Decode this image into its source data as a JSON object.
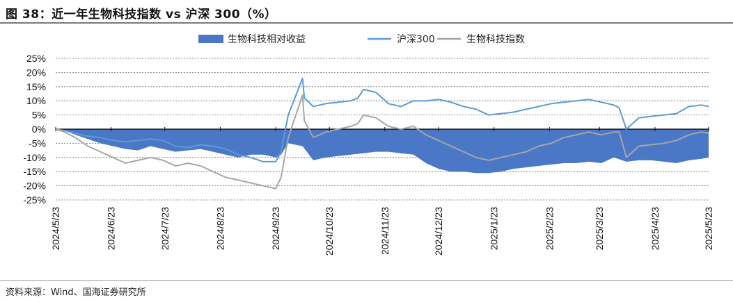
{
  "page": {
    "title": "图 38：近一年生物科技指数 vs 沪深 300（%）",
    "source": "资料来源：Wind、国海证券研究所"
  },
  "chart_data": {
    "type": "line",
    "title": "图 38：近一年生物科技指数 vs 沪深 300（%）",
    "xlabel": "",
    "ylabel": "",
    "ylim": [
      -25,
      25
    ],
    "yticks": [
      "25%",
      "20%",
      "15%",
      "10%",
      "5%",
      "0%",
      "-5%",
      "-10%",
      "-15%",
      "-20%",
      "-25%"
    ],
    "x_labels": [
      "2024/5/23",
      "2024/6/23",
      "2024/7/23",
      "2024/8/23",
      "2024/9/23",
      "2024/10/23",
      "2024/11/23",
      "2024/12/23",
      "2025/1/23",
      "2025/2/23",
      "2025/3/23",
      "2025/4/23",
      "2025/5/23"
    ],
    "x_start": "2024/5/23",
    "x_end": "2025/5/23",
    "grid": "horizontal dashed",
    "legend_position": "top-center",
    "series": [
      {
        "name": "生物科技相对收益",
        "kind": "area",
        "color": "#4a78c6",
        "points": [
          [
            "2024-05-23",
            0
          ],
          [
            "2024-05-28",
            -0.5
          ],
          [
            "2024-06-03",
            -2
          ],
          [
            "2024-06-10",
            -3.5
          ],
          [
            "2024-06-17",
            -5
          ],
          [
            "2024-06-24",
            -6
          ],
          [
            "2024-07-01",
            -7
          ],
          [
            "2024-07-08",
            -7.5
          ],
          [
            "2024-07-15",
            -6
          ],
          [
            "2024-07-22",
            -7
          ],
          [
            "2024-07-29",
            -8
          ],
          [
            "2024-08-05",
            -7.5
          ],
          [
            "2024-08-12",
            -7
          ],
          [
            "2024-08-19",
            -8
          ],
          [
            "2024-08-26",
            -9
          ],
          [
            "2024-09-02",
            -10
          ],
          [
            "2024-09-09",
            -9
          ],
          [
            "2024-09-16",
            -9
          ],
          [
            "2024-09-23",
            -10
          ],
          [
            "2024-09-26",
            -9
          ],
          [
            "2024-09-30",
            -5
          ],
          [
            "2024-10-08",
            -6
          ],
          [
            "2024-10-14",
            -11
          ],
          [
            "2024-10-21",
            -10
          ],
          [
            "2024-10-28",
            -9.5
          ],
          [
            "2024-11-04",
            -9
          ],
          [
            "2024-11-11",
            -8.5
          ],
          [
            "2024-11-18",
            -8
          ],
          [
            "2024-11-25",
            -8
          ],
          [
            "2024-12-02",
            -8.5
          ],
          [
            "2024-12-09",
            -9
          ],
          [
            "2024-12-16",
            -12
          ],
          [
            "2024-12-23",
            -14
          ],
          [
            "2024-12-30",
            -15
          ],
          [
            "2025-01-06",
            -15
          ],
          [
            "2025-01-13",
            -15.5
          ],
          [
            "2025-01-20",
            -15.5
          ],
          [
            "2025-01-27",
            -15
          ],
          [
            "2025-02-03",
            -14
          ],
          [
            "2025-02-10",
            -13.5
          ],
          [
            "2025-02-17",
            -13
          ],
          [
            "2025-02-24",
            -12.5
          ],
          [
            "2025-03-03",
            -12
          ],
          [
            "2025-03-10",
            -12
          ],
          [
            "2025-03-17",
            -11.5
          ],
          [
            "2025-03-24",
            -12
          ],
          [
            "2025-03-31",
            -10
          ],
          [
            "2025-04-07",
            -11.5
          ],
          [
            "2025-04-14",
            -11
          ],
          [
            "2025-04-21",
            -11
          ],
          [
            "2025-04-28",
            -11.5
          ],
          [
            "2025-05-05",
            -12
          ],
          [
            "2025-05-12",
            -11
          ],
          [
            "2025-05-19",
            -10.5
          ],
          [
            "2025-05-23",
            -10
          ]
        ]
      },
      {
        "name": "沪深300",
        "kind": "line",
        "color": "#5b9bd5",
        "points": [
          [
            "2024-05-23",
            0
          ],
          [
            "2024-05-28",
            -0.5
          ],
          [
            "2024-06-03",
            -1.5
          ],
          [
            "2024-06-10",
            -2.5
          ],
          [
            "2024-06-17",
            -3
          ],
          [
            "2024-06-24",
            -4
          ],
          [
            "2024-07-01",
            -4.5
          ],
          [
            "2024-07-08",
            -4
          ],
          [
            "2024-07-15",
            -3.5
          ],
          [
            "2024-07-22",
            -4
          ],
          [
            "2024-07-29",
            -6
          ],
          [
            "2024-08-05",
            -6.5
          ],
          [
            "2024-08-12",
            -5.5
          ],
          [
            "2024-08-19",
            -6
          ],
          [
            "2024-08-26",
            -7
          ],
          [
            "2024-09-02",
            -9
          ],
          [
            "2024-09-09",
            -10
          ],
          [
            "2024-09-16",
            -11.5
          ],
          [
            "2024-09-23",
            -11.5
          ],
          [
            "2024-09-26",
            -8
          ],
          [
            "2024-09-30",
            5
          ],
          [
            "2024-10-08",
            18
          ],
          [
            "2024-10-09",
            11
          ],
          [
            "2024-10-14",
            8
          ],
          [
            "2024-10-21",
            9
          ],
          [
            "2024-10-28",
            9.5
          ],
          [
            "2024-11-04",
            10
          ],
          [
            "2024-11-08",
            11
          ],
          [
            "2024-11-11",
            14
          ],
          [
            "2024-11-18",
            13
          ],
          [
            "2024-11-25",
            9
          ],
          [
            "2024-12-02",
            8
          ],
          [
            "2024-12-09",
            10
          ],
          [
            "2024-12-16",
            10
          ],
          [
            "2024-12-23",
            10.5
          ],
          [
            "2024-12-30",
            9.5
          ],
          [
            "2025-01-06",
            8
          ],
          [
            "2025-01-13",
            7
          ],
          [
            "2025-01-20",
            5
          ],
          [
            "2025-01-27",
            5.5
          ],
          [
            "2025-02-03",
            6
          ],
          [
            "2025-02-10",
            7
          ],
          [
            "2025-02-17",
            8
          ],
          [
            "2025-02-24",
            9
          ],
          [
            "2025-03-03",
            9.5
          ],
          [
            "2025-03-10",
            10
          ],
          [
            "2025-03-17",
            10.5
          ],
          [
            "2025-03-24",
            9.5
          ],
          [
            "2025-03-31",
            8.5
          ],
          [
            "2025-04-03",
            7.5
          ],
          [
            "2025-04-07",
            0
          ],
          [
            "2025-04-14",
            4
          ],
          [
            "2025-04-21",
            4.5
          ],
          [
            "2025-04-28",
            5
          ],
          [
            "2025-05-05",
            5.5
          ],
          [
            "2025-05-12",
            8
          ],
          [
            "2025-05-19",
            8.5
          ],
          [
            "2025-05-23",
            8
          ]
        ]
      },
      {
        "name": "生物科技指数",
        "kind": "line",
        "color": "#a6a6a6",
        "points": [
          [
            "2024-05-23",
            0
          ],
          [
            "2024-05-28",
            -1
          ],
          [
            "2024-06-03",
            -3
          ],
          [
            "2024-06-10",
            -6
          ],
          [
            "2024-06-17",
            -8
          ],
          [
            "2024-06-24",
            -10
          ],
          [
            "2024-07-01",
            -12
          ],
          [
            "2024-07-08",
            -11
          ],
          [
            "2024-07-15",
            -10
          ],
          [
            "2024-07-22",
            -11
          ],
          [
            "2024-07-29",
            -13
          ],
          [
            "2024-08-05",
            -12
          ],
          [
            "2024-08-12",
            -13
          ],
          [
            "2024-08-19",
            -15
          ],
          [
            "2024-08-26",
            -17
          ],
          [
            "2024-09-02",
            -18
          ],
          [
            "2024-09-09",
            -19
          ],
          [
            "2024-09-16",
            -20
          ],
          [
            "2024-09-23",
            -21
          ],
          [
            "2024-09-26",
            -17
          ],
          [
            "2024-09-30",
            -3
          ],
          [
            "2024-10-08",
            12
          ],
          [
            "2024-10-09",
            3
          ],
          [
            "2024-10-14",
            -3
          ],
          [
            "2024-10-21",
            -1
          ],
          [
            "2024-10-28",
            0
          ],
          [
            "2024-11-04",
            1
          ],
          [
            "2024-11-08",
            2
          ],
          [
            "2024-11-11",
            5
          ],
          [
            "2024-11-18",
            4
          ],
          [
            "2024-11-25",
            1
          ],
          [
            "2024-12-02",
            0
          ],
          [
            "2024-12-09",
            1
          ],
          [
            "2024-12-16",
            -2
          ],
          [
            "2024-12-23",
            -4
          ],
          [
            "2024-12-30",
            -6
          ],
          [
            "2025-01-06",
            -8
          ],
          [
            "2025-01-13",
            -10
          ],
          [
            "2025-01-20",
            -11
          ],
          [
            "2025-01-27",
            -10
          ],
          [
            "2025-02-03",
            -9
          ],
          [
            "2025-02-10",
            -8
          ],
          [
            "2025-02-17",
            -6
          ],
          [
            "2025-02-24",
            -5
          ],
          [
            "2025-03-03",
            -3
          ],
          [
            "2025-03-10",
            -2
          ],
          [
            "2025-03-17",
            -1
          ],
          [
            "2025-03-24",
            -2
          ],
          [
            "2025-03-31",
            -1
          ],
          [
            "2025-04-03",
            -1
          ],
          [
            "2025-04-07",
            -10
          ],
          [
            "2025-04-14",
            -6
          ],
          [
            "2025-04-21",
            -5.5
          ],
          [
            "2025-04-28",
            -5
          ],
          [
            "2025-05-05",
            -4
          ],
          [
            "2025-05-12",
            -2
          ],
          [
            "2025-05-19",
            -1
          ],
          [
            "2025-05-23",
            -1.5
          ]
        ]
      }
    ]
  }
}
